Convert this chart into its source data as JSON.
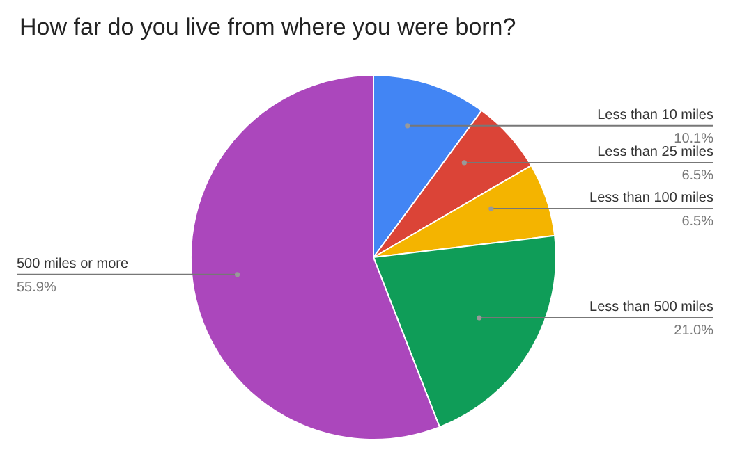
{
  "chart_data": {
    "type": "pie",
    "title": "How far do you live from where you were born?",
    "categories": [
      "Less than 10 miles",
      "Less than 25 miles",
      "Less than 100 miles",
      "Less than 500 miles",
      "500 miles or more"
    ],
    "values": [
      10.1,
      6.5,
      6.5,
      21.0,
      55.9
    ],
    "value_labels": [
      "10.1%",
      "6.5%",
      "6.5%",
      "21.0%",
      "55.9%"
    ],
    "colors": [
      "#4285f4",
      "#db4437",
      "#f4b400",
      "#0f9d58",
      "#ab47bc"
    ],
    "legend": false
  }
}
